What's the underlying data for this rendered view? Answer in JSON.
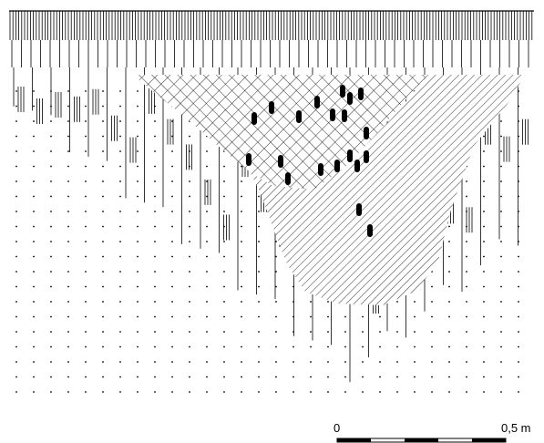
{
  "scale_bar": {
    "start_label": "0",
    "end_label": "0,5 m"
  }
}
